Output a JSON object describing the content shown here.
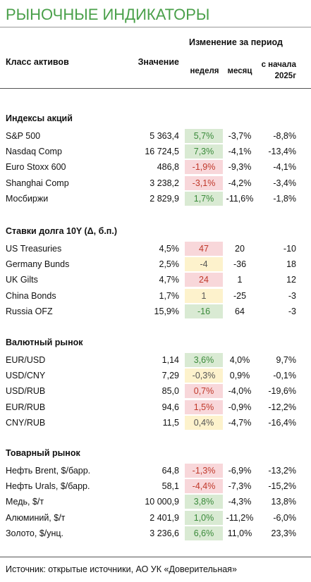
{
  "header": {
    "title": "РЫНОЧНЫЕ ИНДИКАТОРЫ",
    "period_header": "Изменение за период",
    "columns": [
      "Класс активов",
      "Значение",
      "неделя",
      "месяц",
      "с начала 2025г"
    ]
  },
  "sections": [
    {
      "title": "Индексы акций",
      "rows": [
        {
          "name": "S&P 500",
          "value": "5 363,4",
          "week": "5,7%",
          "month": "-3,7%",
          "ytd": "-8,8%",
          "week_color": "#d9ead3"
        },
        {
          "name": "Nasdaq Comp",
          "value": "16 724,5",
          "week": "7,3%",
          "month": "-4,1%",
          "ytd": "-13,4%",
          "week_color": "#d9ead3"
        },
        {
          "name": "Euro Stoxx 600",
          "value": "486,8",
          "week": "-1,9%",
          "month": "-9,3%",
          "ytd": "-4,1%",
          "week_color": "#f8d7da"
        },
        {
          "name": "Shanghai Comp",
          "value": "3 238,2",
          "week": "-3,1%",
          "month": "-4,2%",
          "ytd": "-3,4%",
          "week_color": "#f8d7da"
        },
        {
          "name": "Мосбиржи",
          "value": "2 829,9",
          "week": "1,7%",
          "month": "-11,6%",
          "ytd": "-1,8%",
          "week_color": "#d9ead3"
        }
      ]
    },
    {
      "title": "Ставки долга 10Y (Δ, б.п.)",
      "rows": [
        {
          "name": "US Treasuries",
          "value": "4,5%",
          "week": "47",
          "month": "20",
          "ytd": "-10",
          "week_color": "#f8d7da"
        },
        {
          "name": "Germany Bunds",
          "value": "2,5%",
          "week": "-4",
          "month": "-36",
          "ytd": "18",
          "week_color": "#fdf2cc"
        },
        {
          "name": "UK Gilts",
          "value": "4,7%",
          "week": "24",
          "month": "1",
          "ytd": "12",
          "week_color": "#f8d7da"
        },
        {
          "name": "China Bonds",
          "value": "1,7%",
          "week": "1",
          "month": "-25",
          "ytd": "-3",
          "week_color": "#fdf2cc"
        },
        {
          "name": "Russia OFZ",
          "value": "15,9%",
          "week": "-16",
          "month": "64",
          "ytd": "-3",
          "week_color": "#d9ead3"
        }
      ]
    },
    {
      "title": "Валютный рынок",
      "rows": [
        {
          "name": "EUR/USD",
          "value": "1,14",
          "week": "3,6%",
          "month": "4,0%",
          "ytd": "9,7%",
          "week_color": "#d9ead3"
        },
        {
          "name": "USD/CNY",
          "value": "7,29",
          "week": "-0,3%",
          "month": "0,9%",
          "ytd": "-0,1%",
          "week_color": "#fdf2cc"
        },
        {
          "name": "USD/RUB",
          "value": "85,0",
          "week": "0,7%",
          "month": "-4,0%",
          "ytd": "-19,6%",
          "week_color": "#f8d7da"
        },
        {
          "name": "EUR/RUB",
          "value": "94,6",
          "week": "1,5%",
          "month": "-0,9%",
          "ytd": "-12,2%",
          "week_color": "#f8d7da"
        },
        {
          "name": "CNY/RUB",
          "value": "11,5",
          "week": "0,4%",
          "month": "-4,7%",
          "ytd": "-16,4%",
          "week_color": "#fdf2cc"
        }
      ]
    },
    {
      "title": "Товарный рынок",
      "rows": [
        {
          "name": "Нефть Brent, $/барр.",
          "value": "64,8",
          "week": "-1,3%",
          "month": "-6,9%",
          "ytd": "-13,2%",
          "week_color": "#f8d7da"
        },
        {
          "name": "Нефть Urals, $/барр.",
          "value": "58,1",
          "week": "-4,4%",
          "month": "-7,3%",
          "ytd": "-15,2%",
          "week_color": "#f8d7da"
        },
        {
          "name": "Медь, $/т",
          "value": "10 000,9",
          "week": "3,8%",
          "month": "-4,3%",
          "ytd": "13,8%",
          "week_color": "#d9ead3"
        },
        {
          "name": "Алюминий, $/т",
          "value": "2 401,9",
          "week": "1,0%",
          "month": "-11,2%",
          "ytd": "-6,0%",
          "week_color": "#d9ead3"
        },
        {
          "name": "Золото, $/унц.",
          "value": "3 236,6",
          "week": "6,6%",
          "month": "11,0%",
          "ytd": "23,3%",
          "week_color": "#d9ead3"
        }
      ]
    }
  ],
  "footer": {
    "source": "Источник: открытые источники, АО УК «Доверительная»"
  }
}
